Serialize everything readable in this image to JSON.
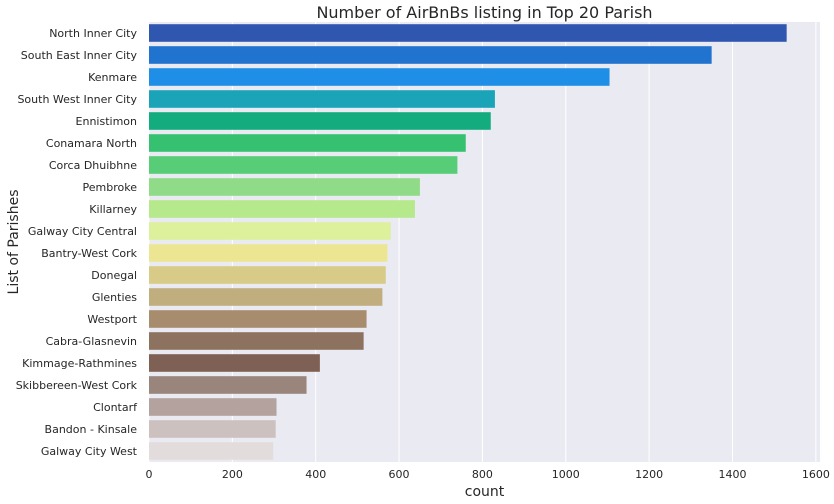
{
  "chart_data": {
    "type": "bar",
    "orientation": "horizontal",
    "title": "Number of AirBnBs listing in Top 20 Parish",
    "xlabel": "count",
    "ylabel": "List of Parishes",
    "xlim": [
      0,
      1610
    ],
    "xticks": [
      0,
      200,
      400,
      600,
      800,
      1000,
      1200,
      1400,
      1600
    ],
    "grid": true,
    "background": "#eaeaf2",
    "categories": [
      "North Inner City",
      "South East Inner City",
      "Kenmare",
      "South West Inner City",
      "Ennistimon",
      "Conamara North",
      "Corca Dhuibhne",
      "Pembroke",
      "Killarney",
      "Galway City Central",
      "Bantry-West Cork",
      "Donegal",
      "Glenties",
      "Westport",
      "Cabra-Glasnevin",
      "Kimmage-Rathmines",
      "Skibbereen-West Cork",
      "Clontarf",
      "Bandon - Kinsale",
      "Galway City West"
    ],
    "values": [
      1530,
      1350,
      1105,
      830,
      820,
      760,
      740,
      650,
      638,
      580,
      572,
      568,
      560,
      522,
      515,
      410,
      378,
      306,
      304,
      298
    ],
    "colors": [
      "#3057b0",
      "#2173d0",
      "#1f8ee6",
      "#1ba4b8",
      "#13ac7e",
      "#36c171",
      "#58cd78",
      "#8fdb87",
      "#b6e88c",
      "#ddf09c",
      "#ece693",
      "#d8cb87",
      "#c0ae7f",
      "#a78d6d",
      "#8e7260",
      "#7f6054",
      "#99857c",
      "#b4a29e",
      "#cdc1bf",
      "#e3dcdc"
    ]
  }
}
